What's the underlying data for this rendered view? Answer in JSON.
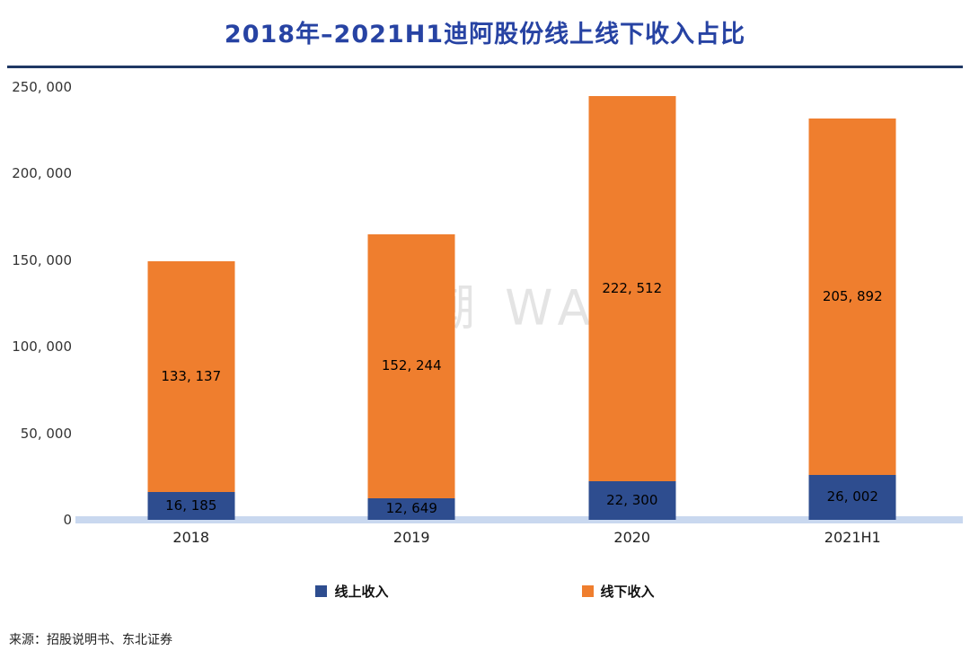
{
  "title": "2018年–2021H1迪阿股份线上线下收入占比",
  "watermark": "巨潮 WAVE",
  "source": "来源：招股说明书、东北证券",
  "colors": {
    "title_blue": "#2743a3",
    "divider_navy": "#1f3864",
    "baseline_lightblue": "#c9d8ef",
    "online_blue": "#2e4d8f",
    "offline_orange": "#ef7e2e"
  },
  "chart_data": {
    "type": "bar",
    "stacked": true,
    "title": "2018年–2021H1迪阿股份线上线下收入占比",
    "categories": [
      "2018",
      "2019",
      "2020",
      "2021H1"
    ],
    "series": [
      {
        "name": "线上收入",
        "color": "#2e4d8f",
        "values": [
          16185,
          12649,
          22300,
          26002
        ],
        "labels": [
          "16, 185",
          "12, 649",
          "22, 300",
          "26, 002"
        ]
      },
      {
        "name": "线下收入",
        "color": "#ef7e2e",
        "values": [
          133137,
          152244,
          222512,
          205892
        ],
        "labels": [
          "133, 137",
          "152, 244",
          "222, 512",
          "205, 892"
        ]
      }
    ],
    "ylim": [
      0,
      250000
    ],
    "yticks": [
      {
        "value": 0,
        "label": "0"
      },
      {
        "value": 50000,
        "label": "50, 000"
      },
      {
        "value": 100000,
        "label": "100, 000"
      },
      {
        "value": 150000,
        "label": "150, 000"
      },
      {
        "value": 200000,
        "label": "200, 000"
      },
      {
        "value": 250000,
        "label": "250, 000"
      }
    ],
    "grid": false,
    "legend_position": "bottom",
    "legend": [
      "线上收入",
      "线下收入"
    ]
  }
}
